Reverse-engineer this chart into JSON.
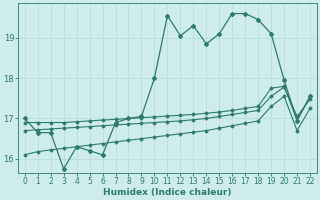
{
  "xlabel": "Humidex (Indice chaleur)",
  "background_color": "#ceecea",
  "line_color": "#2d7a6e",
  "grid_color": "#b8dbd8",
  "xlim": [
    -0.5,
    22.5
  ],
  "ylim": [
    15.65,
    19.85
  ],
  "yticks": [
    16,
    17,
    18,
    19
  ],
  "xticks": [
    0,
    1,
    2,
    3,
    4,
    5,
    6,
    7,
    8,
    9,
    10,
    11,
    12,
    13,
    14,
    15,
    16,
    17,
    18,
    19,
    20,
    21,
    22
  ],
  "main_x": [
    0,
    1,
    2,
    3,
    4,
    5,
    6,
    7,
    8,
    9,
    10,
    11,
    12,
    13,
    14,
    15,
    16,
    17,
    18,
    19,
    20,
    21,
    22
  ],
  "main_y": [
    17.0,
    16.65,
    16.65,
    15.75,
    16.3,
    16.2,
    16.1,
    16.9,
    17.0,
    17.05,
    18.0,
    19.55,
    19.05,
    19.3,
    18.85,
    19.1,
    19.6,
    19.6,
    19.45,
    19.1,
    17.95,
    16.95,
    17.55
  ],
  "line1_x": [
    0,
    1,
    2,
    3,
    4,
    5,
    6,
    7,
    8,
    9,
    10,
    11,
    12,
    13,
    14,
    15,
    16,
    17,
    18,
    19,
    20,
    21,
    22
  ],
  "line1_y": [
    16.9,
    16.9,
    16.9,
    16.9,
    16.92,
    16.94,
    16.96,
    16.98,
    17.0,
    17.02,
    17.04,
    17.06,
    17.08,
    17.1,
    17.13,
    17.16,
    17.2,
    17.25,
    17.3,
    17.75,
    17.8,
    16.95,
    17.55
  ],
  "line2_x": [
    0,
    1,
    2,
    3,
    4,
    5,
    6,
    7,
    8,
    9,
    10,
    11,
    12,
    13,
    14,
    15,
    16,
    17,
    18,
    19,
    20,
    21,
    22
  ],
  "line2_y": [
    16.7,
    16.72,
    16.74,
    16.76,
    16.78,
    16.8,
    16.82,
    16.84,
    16.86,
    16.88,
    16.9,
    16.92,
    16.94,
    16.97,
    17.0,
    17.05,
    17.1,
    17.15,
    17.2,
    17.55,
    17.78,
    17.05,
    17.48
  ],
  "line3_x": [
    0,
    1,
    2,
    3,
    4,
    5,
    6,
    7,
    8,
    9,
    10,
    11,
    12,
    13,
    14,
    15,
    16,
    17,
    18,
    19,
    20,
    21,
    22
  ],
  "line3_y": [
    16.1,
    16.18,
    16.22,
    16.26,
    16.3,
    16.34,
    16.38,
    16.42,
    16.46,
    16.5,
    16.54,
    16.58,
    16.62,
    16.66,
    16.7,
    16.76,
    16.82,
    16.88,
    16.94,
    17.3,
    17.55,
    16.7,
    17.25
  ]
}
